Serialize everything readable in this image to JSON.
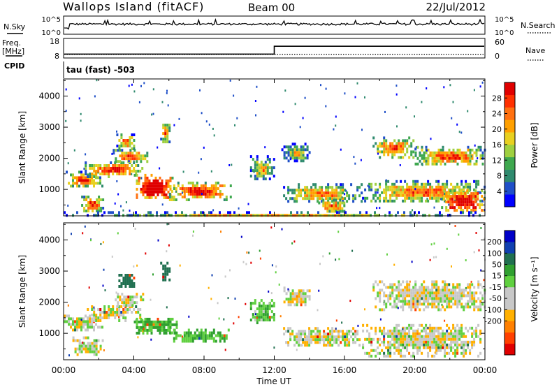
{
  "header": {
    "station": "Wallops Island (fitACF)",
    "beam": "Beam 00",
    "date": "22/Jul/2012"
  },
  "strip": {
    "nsky_label": "N.Sky",
    "nsearch_label": "N.Search",
    "freq_label": "Freq.",
    "freq_unit": "[MHz]",
    "nave_label": "Nave",
    "cpid_label": "CPID",
    "cpid_text": "tau (fast) -503",
    "noise_ticks": [
      "10^5",
      "10^0"
    ],
    "freq_ticks": [
      "18",
      "8"
    ],
    "nave_ticks": [
      "60",
      "0"
    ],
    "freq_step_values": [
      10,
      14
    ],
    "freq_range": [
      8,
      18
    ],
    "freq_step_hour": 12
  },
  "chart_data": [
    {
      "type": "heatmap",
      "name": "power-panel",
      "ylabel": "Slant Range [km]",
      "xlabel": "",
      "ylim": [
        150,
        4550
      ],
      "xlim": [
        0,
        24
      ],
      "yticks": [
        "4000",
        "3000",
        "2000",
        "1000"
      ],
      "ytick_values": [
        4000,
        3000,
        2000,
        1000
      ],
      "colorbar_label": "Power [dB]",
      "colorbar_ticks": [
        "28",
        "24",
        "20",
        "16",
        "12",
        "8",
        "4"
      ],
      "colorbar_colors": [
        "#0000ff",
        "#1f4fc8",
        "#2f8a6e",
        "#3fa84f",
        "#9fd040",
        "#e8d020",
        "#ffa000",
        "#ff7010",
        "#ff3000",
        "#e00000"
      ],
      "regions": [
        {
          "hours": [
            0,
            2.2
          ],
          "range": [
            1100,
            1600
          ],
          "level": 0.45
        },
        {
          "hours": [
            1.2,
            4.5
          ],
          "range": [
            1450,
            1900
          ],
          "level": 0.55
        },
        {
          "hours": [
            2.8,
            4.8
          ],
          "range": [
            1900,
            2300
          ],
          "level": 0.5
        },
        {
          "hours": [
            3,
            4
          ],
          "range": [
            2300,
            2800
          ],
          "level": 0.4
        },
        {
          "hours": [
            4,
            6.2
          ],
          "range": [
            700,
            1500
          ],
          "level": 0.75
        },
        {
          "hours": [
            6,
            9.5
          ],
          "range": [
            700,
            1250
          ],
          "level": 0.6
        },
        {
          "hours": [
            5.5,
            6
          ],
          "range": [
            2500,
            3200
          ],
          "level": 0.4
        },
        {
          "hours": [
            1,
            2.2
          ],
          "range": [
            300,
            800
          ],
          "level": 0.5
        },
        {
          "hours": [
            10.5,
            12
          ],
          "range": [
            1300,
            2100
          ],
          "level": 0.25
        },
        {
          "hours": [
            12.4,
            14
          ],
          "range": [
            1900,
            2500
          ],
          "level": 0.2
        },
        {
          "hours": [
            12.5,
            17
          ],
          "range": [
            600,
            1200
          ],
          "level": 0.35
        },
        {
          "hours": [
            14.5,
            16
          ],
          "range": [
            300,
            700
          ],
          "level": 0.45
        },
        {
          "hours": [
            17.6,
            20
          ],
          "range": [
            2000,
            2700
          ],
          "level": 0.45
        },
        {
          "hours": [
            20,
            24
          ],
          "range": [
            1800,
            2400
          ],
          "level": 0.45
        },
        {
          "hours": [
            17,
            24
          ],
          "range": [
            600,
            1300
          ],
          "level": 0.4
        },
        {
          "hours": [
            21.5,
            24
          ],
          "range": [
            300,
            1000
          ],
          "level": 0.7
        },
        {
          "hours": [
            0,
            24
          ],
          "range": [
            160,
            300
          ],
          "level": 0.3
        }
      ]
    },
    {
      "type": "heatmap",
      "name": "velocity-panel",
      "ylabel": "Slant Range [km]",
      "xlabel": "Time UT",
      "ylim": [
        150,
        4550
      ],
      "xlim": [
        0,
        24
      ],
      "yticks": [
        "4000",
        "3000",
        "2000",
        "1000"
      ],
      "ytick_values": [
        4000,
        3000,
        2000,
        1000
      ],
      "xticks": [
        "00:00",
        "04:00",
        "08:00",
        "12:00",
        "16:00",
        "20:00",
        "00:00"
      ],
      "xtick_values": [
        0,
        4,
        8,
        12,
        16,
        20,
        24
      ],
      "colorbar_label": "Velocity [m s⁻¹]",
      "colorbar_ticks": [
        "200",
        "100",
        "50",
        "15",
        "-15",
        "-50",
        "-100",
        "-200"
      ],
      "colorbar_colors": [
        "#e00000",
        "#ff4000",
        "#ff8000",
        "#ffb000",
        "#c8c8c8",
        "#c8c8c8",
        "#60d040",
        "#30a030",
        "#207050",
        "#1040b0",
        "#0000c8"
      ],
      "regions": [
        {
          "hours": [
            0,
            2.2
          ],
          "range": [
            1100,
            1600
          ],
          "v": 0
        },
        {
          "hours": [
            1.2,
            4.5
          ],
          "range": [
            1450,
            1900
          ],
          "v": 0
        },
        {
          "hours": [
            2.8,
            4.5
          ],
          "range": [
            1900,
            2300
          ],
          "v": 0
        },
        {
          "hours": [
            3,
            4
          ],
          "range": [
            2500,
            3000
          ],
          "v": 150
        },
        {
          "hours": [
            4,
            6.5
          ],
          "range": [
            1050,
            1500
          ],
          "v": 60
        },
        {
          "hours": [
            6,
            9.5
          ],
          "range": [
            750,
            1150
          ],
          "v": 50
        },
        {
          "hours": [
            5.5,
            6
          ],
          "range": [
            2700,
            3300
          ],
          "v": 180
        },
        {
          "hours": [
            0.5,
            2.2
          ],
          "range": [
            300,
            900
          ],
          "v": 0
        },
        {
          "hours": [
            10.5,
            12
          ],
          "range": [
            1300,
            2100
          ],
          "v": 40
        },
        {
          "hours": [
            12.4,
            14
          ],
          "range": [
            1900,
            2500
          ],
          "v": 0
        },
        {
          "hours": [
            12.5,
            17
          ],
          "range": [
            600,
            1200
          ],
          "v": 0
        },
        {
          "hours": [
            17.6,
            24
          ],
          "range": [
            1800,
            2700
          ],
          "v": 0
        },
        {
          "hours": [
            17,
            24
          ],
          "range": [
            300,
            1300
          ],
          "v": 0
        }
      ]
    }
  ]
}
